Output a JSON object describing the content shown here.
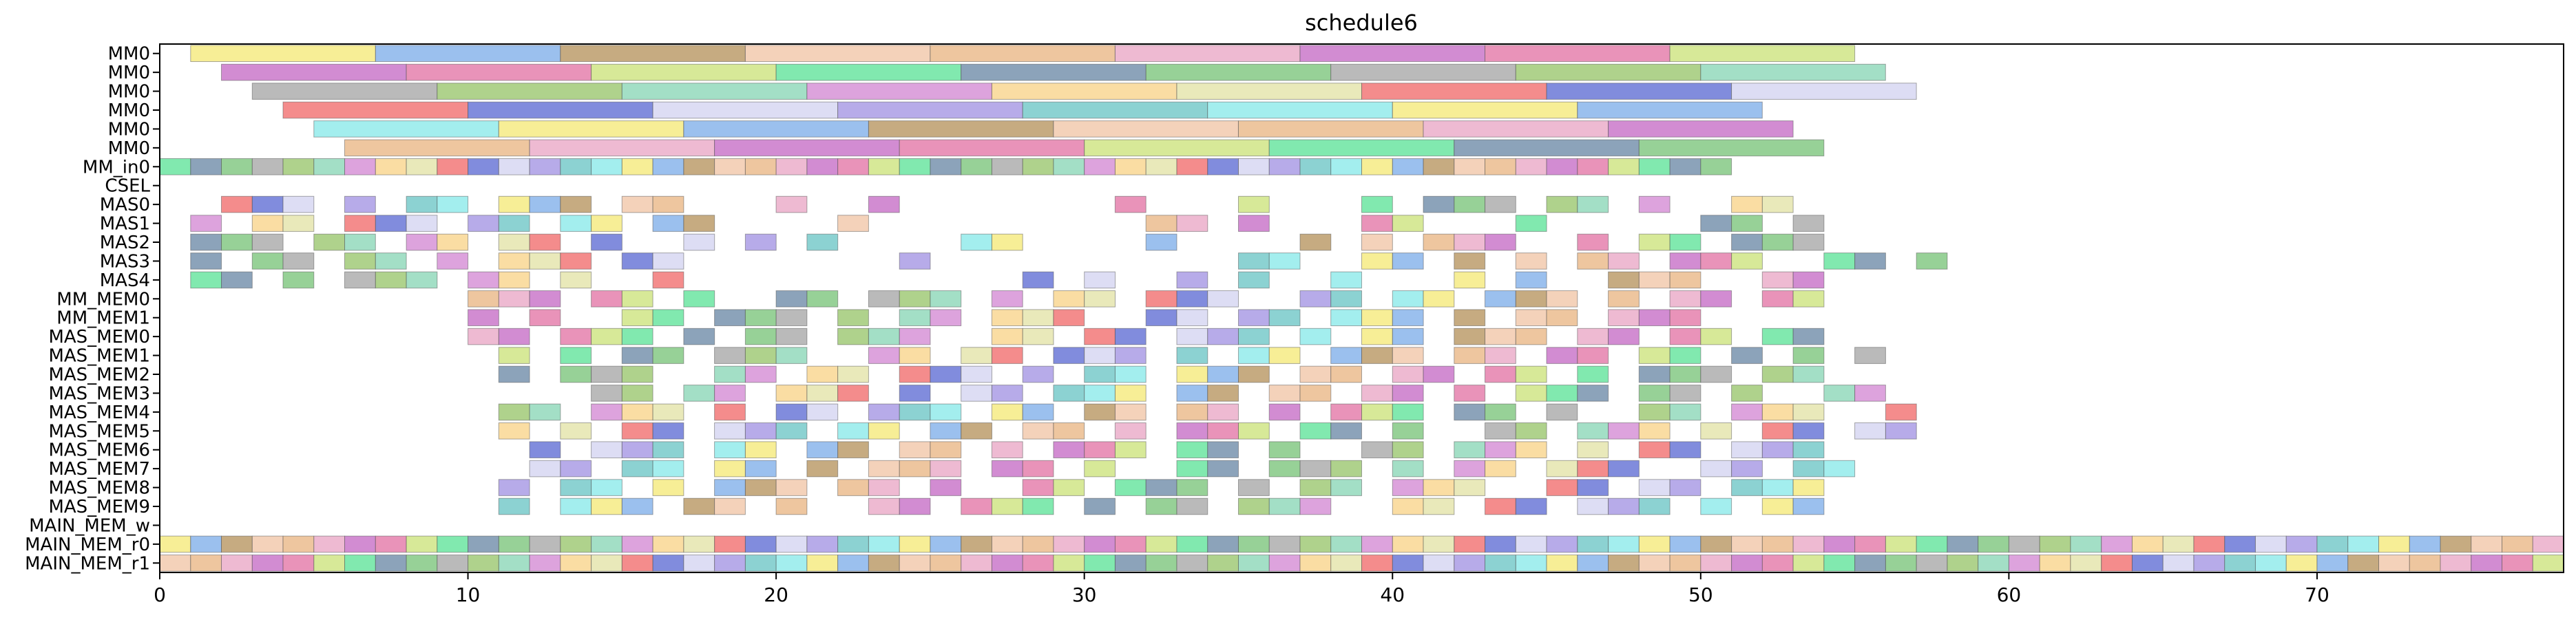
{
  "chart_data": {
    "type": "gantt",
    "title": "schedule6",
    "xlabel": "",
    "ylabel": "",
    "xlim": [
      0,
      78
    ],
    "xticks": [
      0,
      10,
      20,
      30,
      40,
      50,
      60,
      70
    ],
    "grid": false,
    "rows": [
      "MM0",
      "MM0",
      "MM0",
      "MM0",
      "MM0",
      "MM0",
      "MM_in0",
      "CSEL",
      "MAS0",
      "MAS1",
      "MAS2",
      "MAS3",
      "MAS4",
      "MM_MEM0",
      "MM_MEM1",
      "MAS_MEM0",
      "MAS_MEM1",
      "MAS_MEM2",
      "MAS_MEM3",
      "MAS_MEM4",
      "MAS_MEM5",
      "MAS_MEM6",
      "MAS_MEM7",
      "MAS_MEM8",
      "MAS_MEM9",
      "MAIN_MEM_w",
      "MAIN_MEM_r0",
      "MAIN_MEM_r1"
    ],
    "palette": [
      "#f4e76e",
      "#e06a9e",
      "#7fd3b0",
      "#9b8be0",
      "#e8b07a",
      "#6fbf6f",
      "#f06060",
      "#74a8e8",
      "#c8e070",
      "#d080d0",
      "#60c0c0",
      "#e8a0c0",
      "#a0a0a0",
      "#5060d0",
      "#b08a50",
      "#50e090",
      "#f8d080",
      "#80e8e8",
      "#c060c0",
      "#90c060",
      "#d0d0f0",
      "#f0c0a0",
      "#6080a0",
      "#e0e0a0"
    ],
    "stride_rows": [
      {
        "row": 0,
        "start": 1,
        "dur": 6,
        "count": 9,
        "stride": 6
      },
      {
        "row": 1,
        "start": 2,
        "dur": 6,
        "count": 9,
        "stride": 6
      },
      {
        "row": 2,
        "start": 3,
        "dur": 6,
        "count": 9,
        "stride": 6
      },
      {
        "row": 3,
        "start": 4,
        "dur": 6,
        "count": 8,
        "stride": 6
      },
      {
        "row": 4,
        "start": 5,
        "dur": 6,
        "count": 8,
        "stride": 6
      },
      {
        "row": 5,
        "start": 6,
        "dur": 6,
        "count": 8,
        "stride": 6
      },
      {
        "row": 6,
        "start": 0,
        "dur": 1,
        "count": 51,
        "stride": 1
      },
      {
        "row": 26,
        "start": 0,
        "dur": 1,
        "count": 78,
        "stride": 1
      },
      {
        "row": 27,
        "start": 0,
        "dur": 1,
        "count": 78,
        "stride": 1
      }
    ],
    "row_tasks": {
      "8": [
        1,
        2,
        3,
        4,
        5,
        6,
        7,
        8,
        9,
        10,
        11,
        12,
        13,
        14,
        15,
        16,
        17,
        20,
        23,
        27,
        31,
        35,
        37,
        39,
        40,
        41,
        42,
        43,
        44,
        45,
        46,
        47,
        48,
        49,
        50,
        51,
        52,
        55
      ],
      "9": [
        1,
        2,
        3,
        4,
        5,
        6,
        7,
        8,
        9,
        10,
        11,
        12,
        13,
        14,
        15,
        16,
        17,
        18,
        22,
        25,
        32,
        33,
        35,
        38,
        39,
        40,
        43,
        44,
        46,
        48,
        50,
        51,
        52,
        53
      ],
      "10": [
        1,
        2,
        3,
        4,
        5,
        6,
        7,
        8,
        9,
        10,
        11,
        12,
        13,
        14,
        16,
        17,
        19,
        21,
        24,
        26,
        27,
        29,
        32,
        34,
        36,
        37,
        39,
        40,
        41,
        42,
        43,
        45,
        46,
        47,
        48,
        49,
        50,
        51,
        52,
        53,
        56
      ],
      "11": [
        1,
        2,
        3,
        4,
        5,
        6,
        7,
        8,
        9,
        10,
        11,
        12,
        13,
        14,
        15,
        16,
        17,
        24,
        33,
        34,
        35,
        36,
        37,
        39,
        40,
        42,
        43,
        44,
        45,
        46,
        47,
        48,
        49,
        50,
        51,
        52,
        53,
        54,
        55,
        56,
        57
      ],
      "12": [
        1,
        2,
        3,
        4,
        5,
        6,
        7,
        8,
        9,
        10,
        11,
        12,
        13,
        14,
        15,
        16,
        28,
        29,
        30,
        33,
        35,
        36,
        38,
        39,
        42,
        44,
        46,
        47,
        48,
        49,
        50,
        51,
        52,
        53,
        54
      ],
      "13": [
        10,
        11,
        12,
        13,
        14,
        15,
        16,
        17,
        18,
        19,
        20,
        21,
        22,
        23,
        24,
        25,
        26,
        27,
        28,
        29,
        30,
        31,
        32,
        33,
        34,
        35,
        36,
        37,
        38,
        39,
        40,
        41,
        42,
        43,
        44,
        45,
        46,
        47,
        48,
        49,
        50,
        51,
        52,
        53
      ],
      "14": [
        10,
        11,
        12,
        13,
        14,
        15,
        16,
        17,
        18,
        19,
        20,
        21,
        22,
        23,
        24,
        25,
        26,
        27,
        28,
        29,
        30,
        31,
        32,
        33,
        34,
        35,
        36,
        37,
        38,
        39,
        40,
        41,
        42,
        43,
        44,
        45,
        46,
        47,
        48,
        49,
        50
      ],
      "15": [
        10,
        11,
        12,
        13,
        14,
        15,
        16,
        17,
        18,
        19,
        20,
        21,
        22,
        23,
        24,
        25,
        26,
        27,
        28,
        29,
        30,
        31,
        32,
        33,
        34,
        35,
        36,
        37,
        38,
        39,
        40,
        41,
        42,
        43,
        44,
        45,
        46,
        47,
        48,
        49,
        50,
        51,
        52,
        53
      ],
      "16": [
        11,
        12,
        13,
        14,
        15,
        16,
        17,
        18,
        19,
        20,
        21,
        22,
        23,
        24,
        25,
        26,
        27,
        28,
        29,
        30,
        31,
        32,
        33,
        34,
        35,
        36,
        37,
        38,
        39,
        40,
        41,
        42,
        43,
        44,
        45,
        46,
        47,
        48,
        49,
        50,
        51,
        52,
        53,
        55
      ],
      "17": [
        11,
        12,
        13,
        14,
        15,
        16,
        17,
        18,
        19,
        20,
        21,
        22,
        23,
        24,
        25,
        26,
        27,
        28,
        29,
        30,
        31,
        32,
        33,
        34,
        35,
        36,
        37,
        38,
        39,
        40,
        41,
        42,
        43,
        44,
        45,
        46,
        47,
        48,
        49,
        50,
        51,
        52,
        53
      ],
      "18": [
        12,
        13,
        14,
        15,
        16,
        17,
        18,
        19,
        20,
        21,
        22,
        23,
        24,
        25,
        26,
        27,
        28,
        29,
        30,
        31,
        32,
        33,
        34,
        35,
        36,
        37,
        38,
        39,
        40,
        41,
        42,
        43,
        44,
        45,
        46,
        47,
        48,
        49,
        50,
        51,
        52,
        53,
        54,
        55
      ],
      "19": [
        11,
        12,
        13,
        14,
        15,
        16,
        17,
        18,
        19,
        20,
        21,
        22,
        23,
        24,
        25,
        26,
        27,
        28,
        29,
        30,
        31,
        32,
        33,
        34,
        35,
        36,
        37,
        38,
        39,
        40,
        41,
        42,
        43,
        44,
        45,
        46,
        47,
        48,
        49,
        50,
        51,
        52,
        53,
        54,
        56
      ],
      "20": [
        11,
        12,
        13,
        14,
        15,
        16,
        17,
        18,
        19,
        20,
        21,
        22,
        23,
        24,
        25,
        26,
        27,
        28,
        29,
        30,
        31,
        32,
        33,
        34,
        35,
        36,
        37,
        38,
        39,
        40,
        41,
        42,
        43,
        44,
        45,
        46,
        47,
        48,
        49,
        50,
        51,
        52,
        53,
        54,
        55,
        56
      ],
      "21": [
        12,
        13,
        14,
        15,
        16,
        17,
        18,
        19,
        20,
        21,
        22,
        23,
        24,
        25,
        26,
        27,
        28,
        29,
        30,
        31,
        32,
        33,
        34,
        35,
        36,
        37,
        38,
        39,
        40,
        41,
        42,
        43,
        44,
        45,
        46,
        47,
        48,
        49,
        50,
        51,
        52,
        53,
        54
      ],
      "22": [
        11,
        12,
        13,
        14,
        15,
        16,
        17,
        18,
        19,
        20,
        21,
        22,
        23,
        24,
        25,
        26,
        27,
        28,
        29,
        30,
        31,
        32,
        33,
        34,
        35,
        36,
        37,
        38,
        39,
        40,
        41,
        42,
        43,
        44,
        45,
        46,
        47,
        48,
        49,
        50,
        51,
        52,
        53,
        54
      ],
      "23": [
        11,
        12,
        13,
        14,
        15,
        16,
        17,
        18,
        19,
        20,
        21,
        22,
        23,
        24,
        25,
        26,
        27,
        28,
        29,
        30,
        31,
        32,
        33,
        34,
        35,
        36,
        37,
        38,
        39,
        40,
        41,
        42,
        43,
        44,
        45,
        46,
        47,
        48,
        49,
        50,
        51,
        52,
        53,
        54
      ],
      "24": [
        11,
        12,
        13,
        14,
        15,
        16,
        17,
        18,
        19,
        20,
        21,
        22,
        23,
        24,
        25,
        26,
        27,
        28,
        29,
        30,
        31,
        32,
        33,
        34,
        35,
        36,
        37,
        38,
        39,
        40,
        41,
        42,
        43,
        44,
        45,
        46,
        47,
        48,
        49,
        50,
        51,
        52,
        53
      ]
    },
    "row_keep_pattern": [
      1,
      1,
      0,
      1,
      1,
      0,
      1,
      0,
      1,
      1,
      1,
      0,
      1,
      1,
      0,
      1,
      0,
      0,
      1,
      1,
      0,
      1,
      1,
      1,
      0,
      1,
      0,
      1,
      1,
      0,
      1,
      1,
      1,
      0,
      0,
      1,
      1,
      0,
      1,
      1,
      0,
      1,
      1,
      1,
      0,
      1,
      0,
      1,
      1,
      0,
      1,
      1,
      1,
      0,
      1,
      1,
      0
    ]
  }
}
